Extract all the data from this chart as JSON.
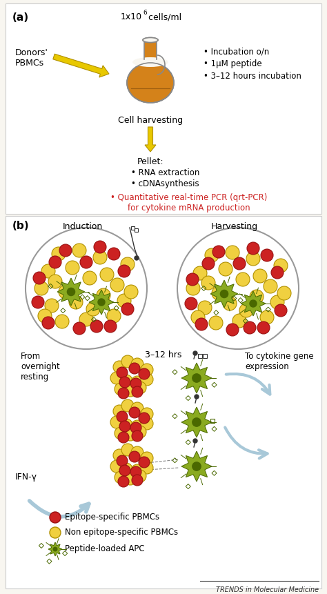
{
  "bg_color": "#f2efe9",
  "panel_a_label": "(a)",
  "panel_b_label": "(b)",
  "donors_text": "Donors'\nPBMCs",
  "bullet_points_right": [
    "• Incubation o/n",
    "• 1μM peptide",
    "• 3–12 hours incubation"
  ],
  "cell_harvest_text": "Cell harvesting",
  "pellet_text": "Pellet:",
  "pellet_bullets": [
    "• RNA extraction",
    "• cDNAsynthesis"
  ],
  "qrt_pcr_line1": "• Quantitative real-time PCR (qrt-PCR)",
  "qrt_pcr_line2": "for cytokine mRNA production",
  "induction_label": "Induction",
  "harvesting_label": "Harvesting",
  "time_label": "3–12 hrs",
  "from_text": "From\novernight\nresting",
  "to_text": "To cytokine gene\nexpression",
  "ifn_label": "IFN-γ",
  "legend_red_label": "Epitope-specific PBMCs",
  "legend_yellow_label": "Non epitope-specific PBMCs",
  "legend_apc_label": "Peptide-loaded APC",
  "trends_text": "TRENDS in Molecular Medicine",
  "flask_fill": "#d4821a",
  "flask_border": "#888888",
  "arrow_yellow": "#e8c800",
  "arrow_blue": "#a8c8d8",
  "red_cell_color": "#cc2222",
  "red_cell_border": "#991111",
  "yellow_cell_color": "#f0d040",
  "yellow_cell_border": "#b09000",
  "apc_color": "#8aaa20",
  "apc_dark": "#4a6800",
  "white_bg": "#f8f6f0"
}
